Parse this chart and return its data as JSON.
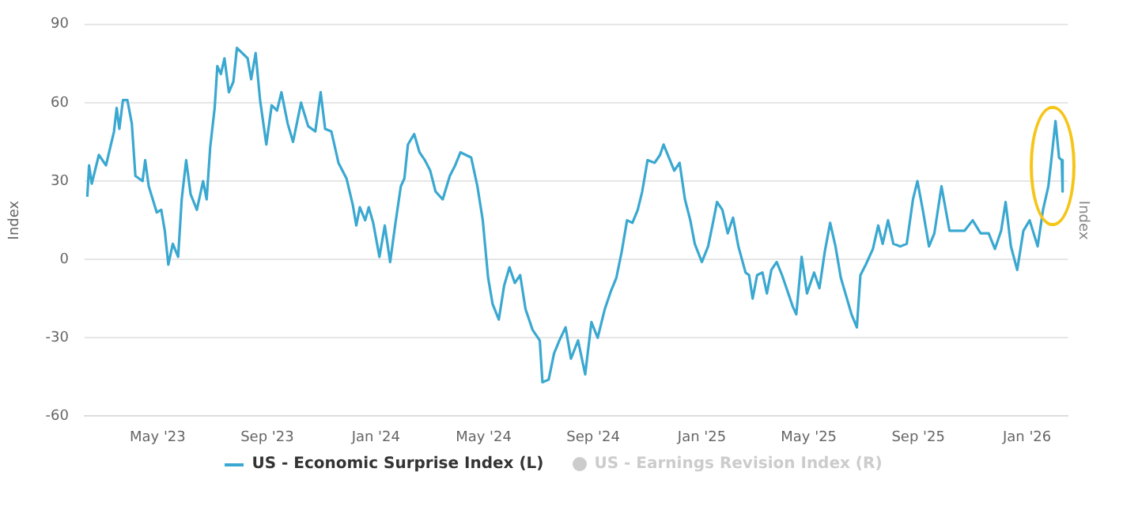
{
  "chart_data": {
    "type": "line",
    "xlabel": null,
    "ylabel": "Index",
    "y2label": "Index",
    "xlim": [
      "2023-02-08",
      "2026-02-16"
    ],
    "ylim": [
      -60,
      90
    ],
    "yticks": [
      -60,
      -30,
      0,
      30,
      60,
      90
    ],
    "xticks": [
      {
        "value": "2023-05-01",
        "label": "May '23"
      },
      {
        "value": "2023-09-01",
        "label": "Sep '23"
      },
      {
        "value": "2024-01-01",
        "label": "Jan '24"
      },
      {
        "value": "2024-05-01",
        "label": "May '24"
      },
      {
        "value": "2024-09-01",
        "label": "Sep '24"
      },
      {
        "value": "2025-01-01",
        "label": "Jan '25"
      },
      {
        "value": "2025-05-01",
        "label": "May '25"
      },
      {
        "value": "2025-09-01",
        "label": "Sep '25"
      },
      {
        "value": "2026-01-01",
        "label": "Jan '26"
      }
    ],
    "grid": "y",
    "legend": "bottom",
    "marker": "none",
    "line_style": "solid",
    "x": [
      "2023-02-11",
      "2023-02-13",
      "2023-02-16",
      "2023-02-24",
      "2023-03-04",
      "2023-03-13",
      "2023-03-16",
      "2023-03-19",
      "2023-03-23",
      "2023-03-28",
      "2023-04-02",
      "2023-04-06",
      "2023-04-14",
      "2023-04-17",
      "2023-04-21",
      "2023-04-30",
      "2023-05-05",
      "2023-05-09",
      "2023-05-13",
      "2023-05-18",
      "2023-05-24",
      "2023-05-28",
      "2023-06-02",
      "2023-06-07",
      "2023-06-14",
      "2023-06-21",
      "2023-06-25",
      "2023-06-29",
      "2023-07-04",
      "2023-07-07",
      "2023-07-11",
      "2023-07-15",
      "2023-07-20",
      "2023-07-25",
      "2023-07-29",
      "2023-08-04",
      "2023-08-10",
      "2023-08-14",
      "2023-08-19",
      "2023-08-24",
      "2023-08-31",
      "2023-09-06",
      "2023-09-12",
      "2023-09-17",
      "2023-09-24",
      "2023-09-30",
      "2023-10-09",
      "2023-10-17",
      "2023-10-25",
      "2023-10-31",
      "2023-11-05",
      "2023-11-12",
      "2023-11-20",
      "2023-11-29",
      "2023-12-06",
      "2023-12-10",
      "2023-12-14",
      "2023-12-20",
      "2023-12-24",
      "2023-12-29",
      "2024-01-05",
      "2024-01-11",
      "2024-01-17",
      "2024-01-23",
      "2024-01-29",
      "2024-02-02",
      "2024-02-06",
      "2024-02-13",
      "2024-02-19",
      "2024-02-25",
      "2024-03-02",
      "2024-03-08",
      "2024-03-16",
      "2024-03-24",
      "2024-03-30",
      "2024-04-05",
      "2024-04-11",
      "2024-04-17",
      "2024-04-24",
      "2024-04-30",
      "2024-05-06",
      "2024-05-11",
      "2024-05-18",
      "2024-05-24",
      "2024-05-30",
      "2024-06-05",
      "2024-06-11",
      "2024-06-17",
      "2024-06-25",
      "2024-07-03",
      "2024-07-06",
      "2024-07-13",
      "2024-07-19",
      "2024-07-25",
      "2024-08-01",
      "2024-08-07",
      "2024-08-15",
      "2024-08-23",
      "2024-08-30",
      "2024-09-06",
      "2024-09-14",
      "2024-09-21",
      "2024-09-27",
      "2024-10-03",
      "2024-10-09",
      "2024-10-15",
      "2024-10-21",
      "2024-10-26",
      "2024-11-01",
      "2024-11-09",
      "2024-11-15",
      "2024-11-19",
      "2024-11-25",
      "2024-12-01",
      "2024-12-07",
      "2024-12-13",
      "2024-12-19",
      "2024-12-24",
      "2025-01-01",
      "2025-01-08",
      "2025-01-14",
      "2025-01-18",
      "2025-01-24",
      "2025-01-30",
      "2025-02-05",
      "2025-02-11",
      "2025-02-19",
      "2025-02-23",
      "2025-02-27",
      "2025-03-04",
      "2025-03-10",
      "2025-03-15",
      "2025-03-20",
      "2025-03-26",
      "2025-04-01",
      "2025-04-07",
      "2025-04-13",
      "2025-04-17",
      "2025-04-23",
      "2025-04-29",
      "2025-05-07",
      "2025-05-13",
      "2025-05-19",
      "2025-05-25",
      "2025-05-31",
      "2025-06-06",
      "2025-06-12",
      "2025-06-18",
      "2025-06-24",
      "2025-06-28",
      "2025-07-04",
      "2025-07-12",
      "2025-07-18",
      "2025-07-23",
      "2025-07-29",
      "2025-08-04",
      "2025-08-12",
      "2025-08-19",
      "2025-08-26",
      "2025-08-31",
      "2025-09-06",
      "2025-09-13",
      "2025-09-19",
      "2025-09-27",
      "2025-10-06",
      "2025-10-14",
      "2025-10-23",
      "2025-11-01",
      "2025-11-10",
      "2025-11-19",
      "2025-11-26",
      "2025-12-03",
      "2025-12-08",
      "2025-12-14",
      "2025-12-21",
      "2025-12-28",
      "2026-01-04",
      "2026-01-13",
      "2026-01-19",
      "2026-01-25",
      "2026-01-28",
      "2026-02-02",
      "2026-02-06",
      "2026-02-09",
      "2026-02-10"
    ],
    "series": [
      {
        "name": "US - Economic Surprise Index (L)",
        "color": "#3aa8d0",
        "values": [
          24,
          36,
          29,
          40,
          36,
          49,
          58,
          50,
          61,
          61,
          52,
          32,
          30,
          38,
          28,
          18,
          19,
          11,
          -2,
          6,
          1,
          23,
          38,
          25,
          19,
          30,
          23,
          43,
          58,
          74,
          71,
          77,
          64,
          68,
          81,
          79,
          77,
          69,
          79,
          61,
          44,
          59,
          57,
          64,
          52,
          45,
          60,
          51,
          49,
          64,
          50,
          49,
          37,
          31,
          21,
          13,
          20,
          15,
          20,
          14,
          1,
          13,
          -1,
          14,
          28,
          31,
          44,
          48,
          41,
          38,
          34,
          26,
          23,
          32,
          36,
          41,
          40,
          39,
          28,
          15,
          -7,
          -17,
          -23,
          -10,
          -3,
          -9,
          -6,
          -19,
          -27,
          -31,
          -47,
          -46,
          -36,
          -31,
          -26,
          -38,
          -31,
          -44,
          -24,
          -30,
          -19,
          -12,
          -7,
          3,
          15,
          14,
          19,
          26,
          38,
          37,
          40,
          44,
          39,
          34,
          37,
          23,
          15,
          6,
          -1,
          5,
          15,
          22,
          19,
          10,
          16,
          5,
          -5,
          -6,
          -15,
          -6,
          -5,
          -13,
          -4,
          -1,
          -6,
          -12,
          -18,
          -21,
          1,
          -13,
          -5,
          -11,
          3,
          14,
          5,
          -7,
          -14,
          -21,
          -26,
          -6,
          -2,
          4,
          13,
          6,
          15,
          6,
          5,
          6,
          23,
          30,
          19,
          5,
          10,
          28,
          11,
          11,
          11,
          15,
          10,
          10,
          4,
          11,
          22,
          5,
          -4,
          11,
          15,
          5,
          19,
          28,
          37,
          53,
          39,
          38,
          26
        ]
      },
      {
        "name": "US - Earnings Revision Index (R)",
        "color": "#cccccc",
        "axis": "y2",
        "values": [
          null,
          null,
          null,
          null,
          null,
          null,
          null,
          null,
          null,
          null,
          null,
          null,
          null,
          null,
          null,
          null,
          null,
          null,
          null,
          null,
          null,
          null,
          null,
          null,
          null,
          null,
          null,
          null,
          null,
          null,
          null,
          null,
          null,
          null,
          null,
          null,
          null,
          null,
          null,
          null,
          null,
          null,
          null,
          null,
          null,
          null,
          null,
          null,
          null,
          null,
          null,
          null,
          null,
          null,
          null,
          null,
          null,
          null,
          null,
          null,
          null,
          null,
          null,
          null,
          null,
          null,
          null,
          null,
          null,
          null,
          null,
          null,
          null,
          null,
          null,
          null,
          null,
          null,
          null,
          null,
          null,
          null,
          null,
          null,
          null,
          null,
          null,
          null,
          null,
          null,
          null,
          null,
          null,
          null,
          null,
          null,
          null,
          null,
          null,
          null,
          null,
          null,
          null,
          null,
          null,
          null,
          null,
          null,
          null,
          null,
          null,
          null,
          null,
          null,
          null,
          null,
          null,
          null,
          null,
          null,
          null,
          null,
          null,
          null,
          null,
          null,
          null,
          null,
          null,
          null,
          null,
          null,
          null,
          null,
          null,
          null,
          null,
          null,
          null,
          null,
          null,
          null,
          null,
          null,
          null,
          null,
          null,
          null,
          null,
          null,
          null,
          null,
          null,
          null,
          null,
          null,
          null,
          null,
          null,
          null,
          null,
          null,
          null,
          null,
          null,
          null,
          null,
          null,
          null,
          null,
          null,
          null,
          null,
          null,
          null,
          null,
          null,
          null,
          null,
          null,
          null,
          null,
          null,
          null,
          null
        ]
      }
    ]
  }
}
